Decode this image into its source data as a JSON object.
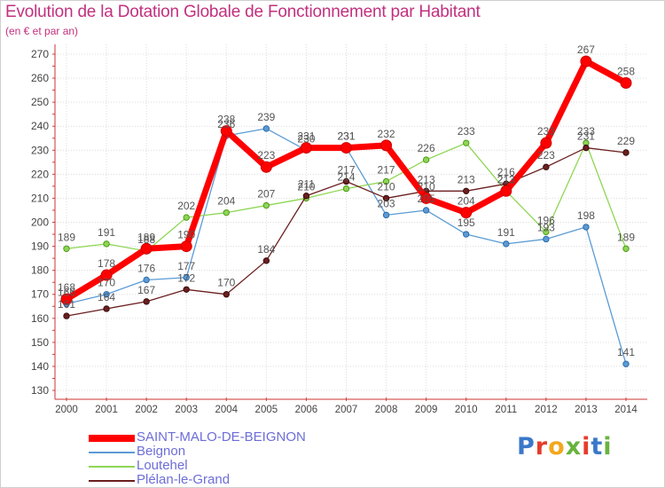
{
  "chart_data": {
    "type": "line",
    "title": "Evolution de la Dotation Globale de Fonctionnement par Habitant",
    "subtitle": "(en € et par an)",
    "xlabel": "",
    "ylabel": "",
    "ylim": [
      130,
      270
    ],
    "y_ticks": [
      130,
      140,
      150,
      160,
      170,
      180,
      190,
      200,
      210,
      220,
      230,
      240,
      250,
      260,
      270
    ],
    "grid": true,
    "legend_position": "bottom-left",
    "categories": [
      "2000",
      "2001",
      "2002",
      "2003",
      "2004",
      "2005",
      "2006",
      "2007",
      "2008",
      "2009",
      "2010",
      "2011",
      "2012",
      "2013",
      "2014"
    ],
    "series": [
      {
        "name": "SAINT-MALO-DE-BEIGNON",
        "color": "#ff0000",
        "values": [
          168,
          178,
          189,
          190,
          238,
          223,
          231,
          231,
          232,
          210,
          204,
          213,
          233,
          267,
          258
        ]
      },
      {
        "name": "Beignon",
        "color": "#5b9bd5",
        "values": [
          166,
          170,
          176,
          177,
          236,
          239,
          230,
          231,
          203,
          205,
          195,
          191,
          193,
          198,
          141
        ]
      },
      {
        "name": "Loutehel",
        "color": "#8ed654",
        "values": [
          189,
          191,
          188,
          202,
          204,
          207,
          210,
          214,
          217,
          226,
          233,
          213,
          196,
          233,
          189
        ]
      },
      {
        "name": "Plélan-le-Grand",
        "color": "#6b1f1f",
        "values": [
          161,
          164,
          167,
          172,
          170,
          184,
          211,
          217,
          210,
          213,
          213,
          216,
          223,
          231,
          229
        ]
      }
    ]
  },
  "brand": {
    "name": "Proxiti"
  }
}
